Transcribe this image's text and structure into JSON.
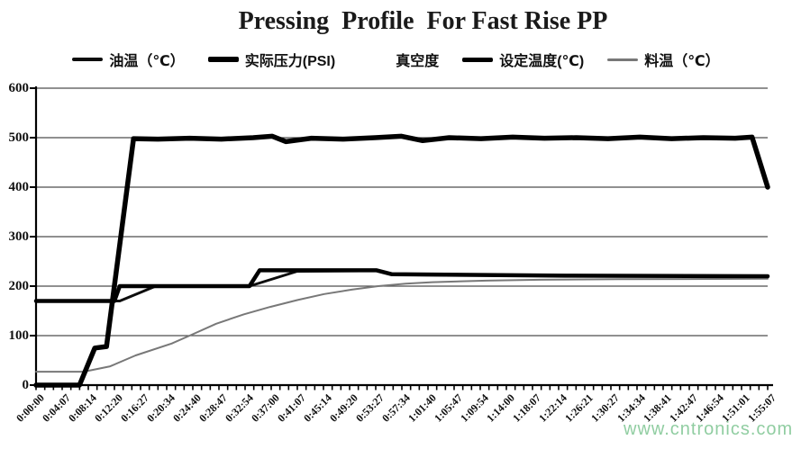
{
  "watermark": "www.cntronics.com",
  "chart_data": {
    "type": "line",
    "title": "Pressing  Profile  For Fast Rise PP",
    "legend_position": "top",
    "grid": "horizontal-gridlines-on",
    "x_axis": {
      "label": "",
      "range_seconds": [
        0,
        6907
      ],
      "minor_ticks_per_label_interval": 3,
      "tick_labels": [
        "0:00:00",
        "0:04:07",
        "0:08:14",
        "0:12:20",
        "0:16:27",
        "0:20:34",
        "0:24:40",
        "0:28:47",
        "0:32:54",
        "0:37:00",
        "0:41:07",
        "0:45:14",
        "0:49:20",
        "0:53:27",
        "0:57:34",
        "1:01:40",
        "1:05:47",
        "1:09:54",
        "1:14:00",
        "1:18:07",
        "1:22:14",
        "1:26:21",
        "1:30:27",
        "1:34:34",
        "1:38:41",
        "1:42:47",
        "1:46:54",
        "1:51:01",
        "1:55:07"
      ],
      "tick_seconds": [
        0,
        247,
        494,
        740,
        987,
        1234,
        1480,
        1727,
        1974,
        2220,
        2467,
        2714,
        2960,
        3207,
        3454,
        3700,
        3947,
        4194,
        4440,
        4687,
        4934,
        5181,
        5427,
        5674,
        5921,
        6167,
        6414,
        6661,
        6907
      ]
    },
    "y_axis": {
      "label": "",
      "min": 0,
      "max": 600,
      "step": 100,
      "tick_labels": [
        "0",
        "100",
        "200",
        "300",
        "400",
        "500",
        "600"
      ]
    },
    "series": [
      {
        "key": "oil-temp",
        "name": "油温（℃）",
        "color": "#0d0d0d",
        "line_width": 3,
        "legend_sample_thickness": 4,
        "points": [
          [
            0,
            170
          ],
          [
            790,
            170
          ],
          [
            1130,
            200
          ],
          [
            2015,
            200
          ],
          [
            2466,
            230
          ],
          [
            3215,
            231
          ],
          [
            3365,
            223
          ],
          [
            5000,
            221
          ],
          [
            6907,
            220
          ]
        ]
      },
      {
        "key": "actual-pressure",
        "name": "实际压力(PSI)",
        "color": "#000000",
        "line_width": 5.5,
        "legend_sample_thickness": 6,
        "points": [
          [
            0,
            0
          ],
          [
            410,
            0
          ],
          [
            555,
            75
          ],
          [
            665,
            78
          ],
          [
            920,
            498
          ],
          [
            1150,
            497
          ],
          [
            1450,
            499
          ],
          [
            1750,
            497
          ],
          [
            2050,
            500
          ],
          [
            2230,
            503
          ],
          [
            2360,
            492
          ],
          [
            2600,
            499
          ],
          [
            2900,
            497
          ],
          [
            3200,
            500
          ],
          [
            3450,
            503
          ],
          [
            3650,
            494
          ],
          [
            3900,
            500
          ],
          [
            4200,
            498
          ],
          [
            4500,
            501
          ],
          [
            4800,
            499
          ],
          [
            5100,
            500
          ],
          [
            5400,
            498
          ],
          [
            5700,
            501
          ],
          [
            6000,
            498
          ],
          [
            6300,
            500
          ],
          [
            6600,
            499
          ],
          [
            6760,
            501
          ],
          [
            6907,
            400
          ]
        ]
      },
      {
        "key": "vacuum",
        "name": "真空度",
        "color": "#ffffff",
        "line_width": 4,
        "legend_sample_thickness": 5,
        "points": []
      },
      {
        "key": "set-temp",
        "name": "设定温度(℃)",
        "color": "#000000",
        "line_width": 4.5,
        "legend_sample_thickness": 5,
        "points": [
          [
            0,
            170
          ],
          [
            740,
            170
          ],
          [
            790,
            200
          ],
          [
            2015,
            200
          ],
          [
            2110,
            232
          ],
          [
            3215,
            232
          ],
          [
            3360,
            224
          ],
          [
            5000,
            221
          ],
          [
            6907,
            220
          ]
        ]
      },
      {
        "key": "material-temp",
        "name": "料温（℃）",
        "color": "#787878",
        "line_width": 2,
        "legend_sample_thickness": 3,
        "points": [
          [
            0,
            27
          ],
          [
            450,
            27
          ],
          [
            700,
            38
          ],
          [
            940,
            60
          ],
          [
            1280,
            84
          ],
          [
            1450,
            100
          ],
          [
            1700,
            124
          ],
          [
            1960,
            143
          ],
          [
            2210,
            158
          ],
          [
            2470,
            172
          ],
          [
            2720,
            184
          ],
          [
            2980,
            193
          ],
          [
            3230,
            200
          ],
          [
            3490,
            205
          ],
          [
            3740,
            208
          ],
          [
            4250,
            211
          ],
          [
            4760,
            213
          ],
          [
            5510,
            214
          ],
          [
            6907,
            215
          ]
        ]
      }
    ]
  }
}
